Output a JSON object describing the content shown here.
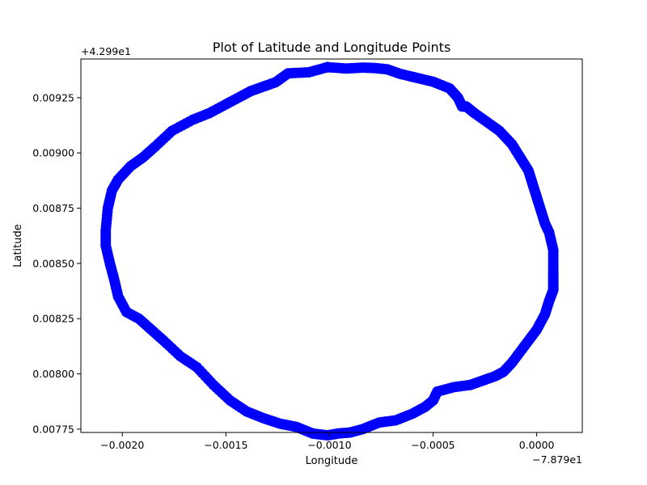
{
  "chart_data": {
    "type": "scatter",
    "title": "Plot of Latitude and Longitude Points",
    "xlabel": "Longitude",
    "ylabel": "Latitude",
    "x_offset_text": "−7.879e1",
    "y_offset_text": "+4.299e1",
    "x_offset": -78.79,
    "y_offset": 42.99,
    "xlim": [
      -0.0022,
      0.00022
    ],
    "ylim": [
      0.007735,
      0.009425
    ],
    "xticks": [
      -0.002,
      -0.0015,
      -0.001,
      -0.0005,
      0.0
    ],
    "xtick_labels": [
      "−0.0020",
      "−0.0015",
      "−0.0010",
      "−0.0005",
      "0.0000"
    ],
    "yticks": [
      0.00775,
      0.008,
      0.00825,
      0.0085,
      0.00875,
      0.009,
      0.00925
    ],
    "ytick_labels": [
      "0.00775",
      "0.00800",
      "0.00825",
      "0.00850",
      "0.00875",
      "0.00900",
      "0.00925"
    ],
    "grid": false,
    "marker_color": "#0000ff",
    "series": [
      {
        "x": [
          -0.00101,
          -0.00092,
          -0.00084,
          -0.00078,
          -0.00072,
          -0.00066,
          -0.00058,
          -0.0005,
          -0.00042,
          -0.00038,
          -0.00036,
          -0.00034,
          -0.0003,
          -0.00024,
          -0.00018,
          -0.00012,
          -8e-05,
          -4e-05,
          -2e-05,
          0.0,
          2e-05,
          4e-05,
          6e-05,
          8e-05,
          8e-05,
          8e-05,
          8e-05,
          6e-05,
          4e-05,
          0.0,
          -4e-05,
          -8e-05,
          -0.00012,
          -0.00016,
          -0.0002,
          -0.00026,
          -0.00032,
          -0.0004,
          -0.00048,
          -0.0005,
          -0.00054,
          -0.0006,
          -0.00068,
          -0.00076,
          -0.00084,
          -0.0009,
          -0.00096,
          -0.00101,
          -0.00108,
          -0.00116,
          -0.00124,
          -0.00132,
          -0.0014,
          -0.00148,
          -0.00156,
          -0.00164,
          -0.00172,
          -0.0018,
          -0.00186,
          -0.00192,
          -0.00198,
          -0.00202,
          -0.00204,
          -0.00206,
          -0.00208,
          -0.00208,
          -0.00207,
          -0.00205,
          -0.00202,
          -0.00196,
          -0.0019,
          -0.00184,
          -0.00176,
          -0.00166,
          -0.00158,
          -0.0015,
          -0.00144,
          -0.00138,
          -0.00132,
          -0.00126,
          -0.0012,
          -0.0011,
          -0.00101
        ],
        "y": [
          0.009388,
          0.009382,
          0.009386,
          0.009384,
          0.009378,
          0.009358,
          0.00934,
          0.009322,
          0.009292,
          0.00925,
          0.00921,
          0.00921,
          0.00918,
          0.00914,
          0.0091,
          0.00904,
          0.00898,
          0.00892,
          0.00886,
          0.0088,
          0.00874,
          0.00868,
          0.00864,
          0.00856,
          0.00848,
          0.00842,
          0.00838,
          0.00833,
          0.00827,
          0.0082,
          0.00815,
          0.0081,
          0.00805,
          0.00801,
          0.00799,
          0.00797,
          0.00795,
          0.00794,
          0.00792,
          0.00788,
          0.00785,
          0.00782,
          0.00779,
          0.00778,
          0.00775,
          0.007735,
          0.00773,
          0.007722,
          0.00773,
          0.00776,
          0.007775,
          0.0078,
          0.00783,
          0.00788,
          0.00795,
          0.00803,
          0.00808,
          0.00815,
          0.0082,
          0.00825,
          0.00828,
          0.00835,
          0.00843,
          0.0085,
          0.00858,
          0.00865,
          0.00875,
          0.00883,
          0.00888,
          0.00894,
          0.00898,
          0.00903,
          0.0091,
          0.00915,
          0.00918,
          0.00922,
          0.00925,
          0.00928,
          0.0093,
          0.00932,
          0.00936,
          0.009365,
          0.009388
        ]
      }
    ]
  }
}
